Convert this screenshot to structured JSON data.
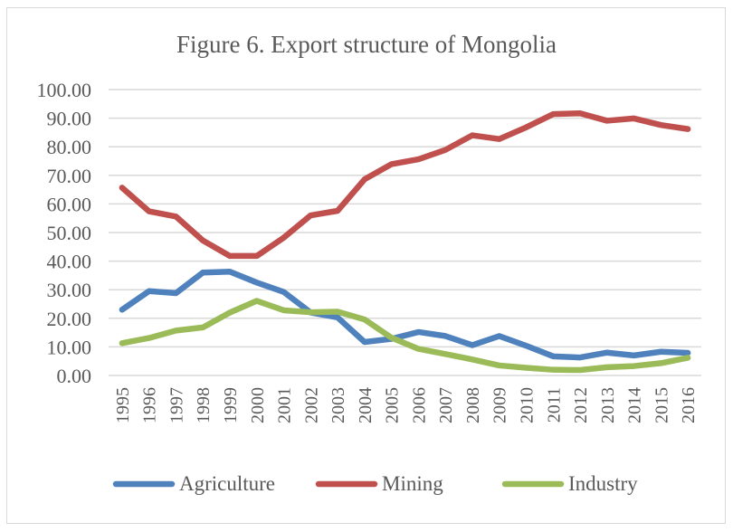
{
  "chart_data": {
    "type": "line",
    "title": "Figure 6. Export structure of Mongolia",
    "xlabel": "",
    "ylabel": "",
    "ylim": [
      0,
      100
    ],
    "yticks": [
      "0.00",
      "10.00",
      "20.00",
      "30.00",
      "40.00",
      "50.00",
      "60.00",
      "70.00",
      "80.00",
      "90.00",
      "100.00"
    ],
    "grid": true,
    "legend_position": "bottom",
    "categories": [
      "1995",
      "1996",
      "1997",
      "1998",
      "1999",
      "2000",
      "2001",
      "2002",
      "2003",
      "2004",
      "2005",
      "2006",
      "2007",
      "2008",
      "2009",
      "2010",
      "2011",
      "2012",
      "2013",
      "2014",
      "2015",
      "2016"
    ],
    "series": [
      {
        "name": "Agriculture",
        "color": "#4f81bd",
        "values": [
          23.0,
          29.5,
          28.8,
          36.0,
          36.3,
          32.5,
          29.2,
          22.0,
          20.3,
          11.7,
          12.8,
          15.2,
          13.8,
          10.6,
          13.8,
          10.4,
          6.7,
          6.3,
          8.0,
          7.0,
          8.3,
          7.9
        ]
      },
      {
        "name": "Mining",
        "color": "#c0504d",
        "values": [
          65.7,
          57.4,
          55.6,
          47.2,
          41.8,
          41.8,
          48.2,
          56.0,
          57.6,
          68.6,
          73.9,
          75.6,
          78.9,
          84.0,
          82.7,
          86.8,
          91.4,
          91.7,
          89.1,
          89.9,
          87.6,
          86.2
        ]
      },
      {
        "name": "Industry",
        "color": "#9bbb59",
        "values": [
          11.3,
          13.1,
          15.7,
          16.8,
          22.0,
          26.1,
          22.8,
          22.1,
          22.3,
          19.6,
          13.2,
          9.3,
          7.5,
          5.6,
          3.5,
          2.7,
          2.0,
          1.9,
          2.9,
          3.3,
          4.3,
          6.2
        ]
      }
    ]
  }
}
